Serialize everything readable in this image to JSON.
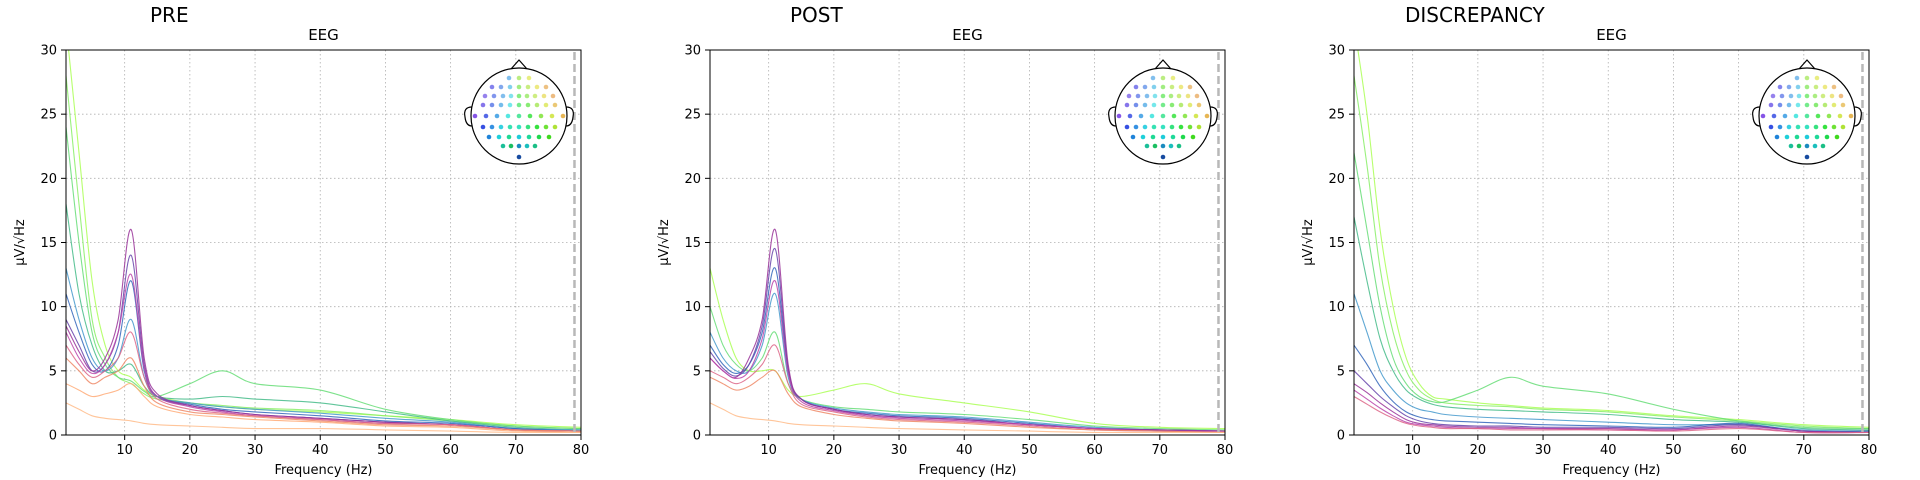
{
  "chart_data": [
    {
      "type": "line",
      "title": "PRE",
      "subtitle": "EEG",
      "xlabel": "Frequency (Hz)",
      "ylabel": "µV/√Hz",
      "xlim": [
        1,
        80
      ],
      "ylim": [
        0,
        30
      ],
      "xticks": [
        10,
        20,
        30,
        40,
        50,
        60,
        70,
        80
      ],
      "yticks": [
        0,
        5,
        10,
        15,
        20,
        25,
        30
      ],
      "grid": true,
      "vline": 79,
      "legend": "sensor-topomap, top-right",
      "x": [
        1,
        3,
        5,
        7,
        9,
        11,
        13,
        15,
        20,
        25,
        30,
        40,
        50,
        60,
        70,
        80
      ],
      "series": [
        {
          "color": "#aaff55",
          "values": [
            32,
            22,
            12,
            7,
            5,
            4.5,
            3.5,
            3,
            2.5,
            2.2,
            2,
            1.8,
            1.5,
            1.2,
            0.8,
            0.6
          ]
        },
        {
          "color": "#88ee66",
          "values": [
            28,
            18,
            9,
            6,
            4.5,
            4,
            3.2,
            2.8,
            2.5,
            2.3,
            2.1,
            1.9,
            1.5,
            1.1,
            0.7,
            0.5
          ]
        },
        {
          "color": "#66dd77",
          "values": [
            24,
            15,
            8,
            5.5,
            4.5,
            4.2,
            3.4,
            3,
            4,
            5,
            4,
            3.5,
            2,
            1.2,
            0.7,
            0.5
          ]
        },
        {
          "color": "#44bb88",
          "values": [
            18,
            11,
            7,
            5,
            5,
            5.5,
            3.8,
            3,
            2.8,
            3,
            2.8,
            2.5,
            1.8,
            1.1,
            0.6,
            0.4
          ]
        },
        {
          "color": "#4499cc",
          "values": [
            13,
            9,
            6,
            5,
            6,
            9,
            4.5,
            3,
            2.5,
            2.2,
            2,
            1.7,
            1.3,
            1,
            0.5,
            0.4
          ]
        },
        {
          "color": "#3366bb",
          "values": [
            11,
            8,
            5.5,
            5,
            7,
            12,
            5,
            3,
            2.4,
            2,
            1.8,
            1.5,
            1.1,
            0.9,
            0.5,
            0.3
          ]
        },
        {
          "color": "#6644aa",
          "values": [
            9,
            7,
            5,
            5.5,
            8,
            14,
            5.5,
            3,
            2.3,
            1.9,
            1.6,
            1.3,
            1,
            0.8,
            0.4,
            0.3
          ]
        },
        {
          "color": "#993399",
          "values": [
            8.5,
            6.5,
            5,
            6,
            9,
            16,
            6,
            3.2,
            2.3,
            1.9,
            1.6,
            1.3,
            1,
            0.8,
            0.4,
            0.3
          ]
        },
        {
          "color": "#bb44aa",
          "values": [
            8,
            6,
            4.8,
            5.5,
            8,
            12.5,
            5.2,
            3,
            2.2,
            1.8,
            1.5,
            1.2,
            0.9,
            0.8,
            0.4,
            0.3
          ]
        },
        {
          "color": "#dd6688",
          "values": [
            7,
            5.5,
            4.5,
            5,
            6,
            8,
            4.5,
            2.8,
            2,
            1.7,
            1.5,
            1.2,
            0.9,
            0.8,
            0.4,
            0.3
          ]
        },
        {
          "color": "#ee8866",
          "values": [
            6,
            5,
            4,
            4.5,
            5,
            6,
            3.8,
            2.5,
            1.8,
            1.6,
            1.4,
            1.1,
            0.8,
            0.7,
            0.4,
            0.3
          ]
        },
        {
          "color": "#ffaa77",
          "values": [
            4,
            3.5,
            3,
            3.2,
            3.5,
            4,
            3,
            2.2,
            1.6,
            1.4,
            1.2,
            1,
            0.7,
            0.6,
            0.3,
            0.2
          ]
        },
        {
          "color": "#ffbb88",
          "values": [
            2.5,
            2,
            1.5,
            1.3,
            1.2,
            1.1,
            0.9,
            0.8,
            0.7,
            0.6,
            0.5,
            0.5,
            0.4,
            0.3,
            0.2,
            0.2
          ]
        }
      ]
    },
    {
      "type": "line",
      "title": "POST",
      "subtitle": "EEG",
      "xlabel": "Frequency (Hz)",
      "ylabel": "µV/√Hz",
      "xlim": [
        1,
        80
      ],
      "ylim": [
        0,
        30
      ],
      "xticks": [
        10,
        20,
        30,
        40,
        50,
        60,
        70,
        80
      ],
      "yticks": [
        0,
        5,
        10,
        15,
        20,
        25,
        30
      ],
      "grid": true,
      "vline": 79,
      "legend": "sensor-topomap, top-right",
      "x": [
        1,
        3,
        5,
        7,
        9,
        11,
        13,
        15,
        20,
        25,
        30,
        40,
        50,
        60,
        70,
        80
      ],
      "series": [
        {
          "color": "#aaff55",
          "values": [
            13,
            9,
            6,
            5,
            5,
            5,
            3.5,
            3,
            3.5,
            4,
            3.2,
            2.5,
            1.8,
            0.9,
            0.6,
            0.5
          ]
        },
        {
          "color": "#66dd77",
          "values": [
            10,
            7,
            5.5,
            5,
            6,
            8,
            4,
            2.8,
            2.2,
            2,
            1.8,
            1.6,
            1.2,
            0.7,
            0.5,
            0.4
          ]
        },
        {
          "color": "#4499cc",
          "values": [
            8,
            6,
            5,
            5,
            7,
            11,
            4.5,
            2.8,
            2.1,
            1.8,
            1.6,
            1.4,
            1,
            0.6,
            0.4,
            0.3
          ]
        },
        {
          "color": "#3366bb",
          "values": [
            7,
            5.5,
            4.8,
            5.5,
            8,
            13,
            5,
            2.8,
            2,
            1.7,
            1.5,
            1.3,
            0.9,
            0.5,
            0.4,
            0.3
          ]
        },
        {
          "color": "#6644aa",
          "values": [
            6.5,
            5.2,
            4.6,
            5.5,
            8.5,
            14.5,
            5.2,
            2.8,
            2,
            1.6,
            1.4,
            1.2,
            0.8,
            0.5,
            0.4,
            0.3
          ]
        },
        {
          "color": "#993399",
          "values": [
            6,
            5,
            4.5,
            6,
            9,
            16,
            5.5,
            2.8,
            2,
            1.6,
            1.4,
            1.2,
            0.8,
            0.5,
            0.4,
            0.3
          ]
        },
        {
          "color": "#bb44aa",
          "values": [
            6,
            5,
            4.4,
            5,
            7.5,
            12,
            4.8,
            2.6,
            1.9,
            1.5,
            1.3,
            1.1,
            0.8,
            0.5,
            0.3,
            0.3
          ]
        },
        {
          "color": "#dd6688",
          "values": [
            5,
            4.5,
            4,
            4.5,
            5.5,
            7,
            4,
            2.4,
            1.8,
            1.4,
            1.2,
            1,
            0.7,
            0.4,
            0.3,
            0.2
          ]
        },
        {
          "color": "#ee8866",
          "values": [
            4.5,
            4,
            3.5,
            3.8,
            4.5,
            5,
            3.2,
            2.2,
            1.6,
            1.3,
            1.1,
            0.9,
            0.6,
            0.4,
            0.3,
            0.2
          ]
        },
        {
          "color": "#ffbb88",
          "values": [
            2.5,
            2,
            1.5,
            1.3,
            1.2,
            1.1,
            0.9,
            0.8,
            0.7,
            0.6,
            0.5,
            0.4,
            0.3,
            0.2,
            0.2,
            0.2
          ]
        }
      ]
    },
    {
      "type": "line",
      "title": "DISCREPANCY",
      "subtitle": "EEG",
      "xlabel": "Frequency (Hz)",
      "ylabel": "µV/√Hz",
      "xlim": [
        1,
        80
      ],
      "ylim": [
        0,
        30
      ],
      "xticks": [
        10,
        20,
        30,
        40,
        50,
        60,
        70,
        80
      ],
      "yticks": [
        0,
        5,
        10,
        15,
        20,
        25,
        30
      ],
      "grid": true,
      "vline": 79,
      "legend": "sensor-topomap, top-right",
      "x": [
        1,
        3,
        5,
        7,
        9,
        11,
        13,
        15,
        20,
        25,
        30,
        40,
        50,
        60,
        70,
        80
      ],
      "series": [
        {
          "color": "#aaff55",
          "values": [
            32,
            25,
            16,
            10,
            6,
            4,
            3,
            2.8,
            2.5,
            2.3,
            2.1,
            1.9,
            1.5,
            1.2,
            0.8,
            0.6
          ]
        },
        {
          "color": "#88ee66",
          "values": [
            28,
            21,
            13,
            8,
            5,
            3.5,
            2.8,
            2.5,
            2.3,
            2.2,
            2,
            1.8,
            1.4,
            1.1,
            0.7,
            0.5
          ]
        },
        {
          "color": "#66dd77",
          "values": [
            22,
            16,
            10,
            6,
            4,
            3,
            2.6,
            2.6,
            3.5,
            4.5,
            3.8,
            3.2,
            2,
            1.1,
            0.6,
            0.5
          ]
        },
        {
          "color": "#44bb88",
          "values": [
            17,
            12,
            7.5,
            5,
            3.5,
            2.8,
            2.4,
            2.2,
            2,
            1.9,
            1.8,
            1.6,
            1.2,
            1,
            0.5,
            0.4
          ]
        },
        {
          "color": "#4499cc",
          "values": [
            11,
            8,
            5,
            3.5,
            2.5,
            2,
            1.8,
            1.6,
            1.4,
            1.3,
            1.2,
            1,
            0.8,
            0.8,
            0.4,
            0.3
          ]
        },
        {
          "color": "#3366bb",
          "values": [
            7,
            5.5,
            3.8,
            2.6,
            1.8,
            1.4,
            1.2,
            1.1,
            1,
            0.9,
            0.8,
            0.7,
            0.6,
            0.9,
            0.3,
            0.3
          ]
        },
        {
          "color": "#6644aa",
          "values": [
            5,
            4,
            3,
            2.2,
            1.5,
            1.1,
            0.9,
            0.8,
            0.7,
            0.7,
            0.6,
            0.6,
            0.5,
            0.8,
            0.3,
            0.2
          ]
        },
        {
          "color": "#993399",
          "values": [
            4,
            3.3,
            2.5,
            1.8,
            1.2,
            0.9,
            0.8,
            0.7,
            0.6,
            0.6,
            0.5,
            0.5,
            0.4,
            0.7,
            0.3,
            0.2
          ]
        },
        {
          "color": "#bb44aa",
          "values": [
            3.5,
            2.8,
            2.1,
            1.5,
            1,
            0.8,
            0.7,
            0.6,
            0.5,
            0.5,
            0.5,
            0.4,
            0.4,
            0.6,
            0.2,
            0.2
          ]
        },
        {
          "color": "#dd6688",
          "values": [
            3,
            2.4,
            1.8,
            1.3,
            0.9,
            0.7,
            0.6,
            0.5,
            0.5,
            0.4,
            0.4,
            0.4,
            0.3,
            0.5,
            0.2,
            0.2
          ]
        }
      ]
    }
  ],
  "topomap": {
    "sensor_colors": [
      "#aaff55",
      "#88ee66",
      "#66dd77",
      "#44bb88",
      "#4499cc",
      "#3366bb",
      "#6644aa",
      "#993399",
      "#bb44aa",
      "#dd6688",
      "#ee8866",
      "#ffaa77",
      "#e6c040",
      "#22aa44"
    ]
  },
  "colors": {
    "grid": "#b0b0b0",
    "vline": "#b8b8b8",
    "axes": "#000000"
  }
}
